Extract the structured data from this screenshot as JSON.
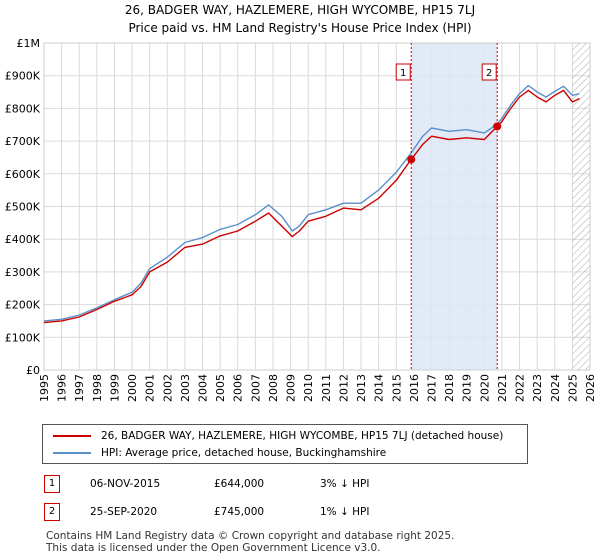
{
  "chart_data": {
    "type": "line",
    "title": "26, BADGER WAY, HAZLEMERE, HIGH WYCOMBE, HP15 7LJ",
    "subtitle": "Price paid vs. HM Land Registry's House Price Index (HPI)",
    "xlim": [
      1995,
      2026
    ],
    "ylim": [
      0,
      1000000
    ],
    "y_ticks": [
      0,
      100000,
      200000,
      300000,
      400000,
      500000,
      600000,
      700000,
      800000,
      900000,
      1000000
    ],
    "y_tick_labels": [
      "£0",
      "£100K",
      "£200K",
      "£300K",
      "£400K",
      "£500K",
      "£600K",
      "£700K",
      "£800K",
      "£900K",
      "£1M"
    ],
    "x_ticks": [
      1995,
      1996,
      1997,
      1998,
      1999,
      2000,
      2001,
      2002,
      2003,
      2004,
      2005,
      2006,
      2007,
      2008,
      2009,
      2010,
      2011,
      2012,
      2013,
      2014,
      2015,
      2016,
      2017,
      2018,
      2019,
      2020,
      2021,
      2022,
      2023,
      2024,
      2025,
      2026
    ],
    "grid": true,
    "shaded_period": [
      2015.85,
      2020.73
    ],
    "hatched_after": 2025.0,
    "series": [
      {
        "name": "26, BADGER WAY, HAZLEMERE, HIGH WYCOMBE, HP15 7LJ (detached house)",
        "color": "#cc0000",
        "x": [
          1995,
          1996,
          1997,
          1998,
          1999,
          2000,
          2000.5,
          2001,
          2002,
          2003,
          2004,
          2005,
          2006,
          2007,
          2007.75,
          2008.5,
          2009.1,
          2009.5,
          2010,
          2011,
          2012,
          2013,
          2014,
          2015,
          2015.85,
          2016.5,
          2017,
          2018,
          2019,
          2020,
          2020.73,
          2021,
          2021.5,
          2022,
          2022.5,
          2023,
          2023.5,
          2024,
          2024.5,
          2025,
          2025.4
        ],
        "y": [
          145000,
          150000,
          162000,
          185000,
          210000,
          230000,
          255000,
          300000,
          330000,
          375000,
          385000,
          410000,
          425000,
          455000,
          480000,
          440000,
          408000,
          425000,
          455000,
          470000,
          495000,
          490000,
          525000,
          580000,
          644000,
          690000,
          715000,
          705000,
          710000,
          705000,
          745000,
          760000,
          800000,
          835000,
          855000,
          835000,
          820000,
          840000,
          855000,
          820000,
          830000
        ]
      },
      {
        "name": "HPI: Average price, detached house, Buckinghamshire",
        "color": "#5b8fc9",
        "x": [
          1995,
          1996,
          1997,
          1998,
          1999,
          2000,
          2000.5,
          2001,
          2002,
          2003,
          2004,
          2005,
          2006,
          2007,
          2007.75,
          2008.5,
          2009.1,
          2009.5,
          2010,
          2011,
          2012,
          2013,
          2014,
          2015,
          2015.85,
          2016.5,
          2017,
          2018,
          2019,
          2020,
          2020.73,
          2021,
          2021.5,
          2022,
          2022.5,
          2023,
          2023.5,
          2024,
          2024.5,
          2025,
          2025.4
        ],
        "y": [
          150000,
          155000,
          168000,
          190000,
          215000,
          238000,
          265000,
          310000,
          345000,
          390000,
          405000,
          430000,
          445000,
          475000,
          505000,
          470000,
          425000,
          440000,
          475000,
          490000,
          510000,
          510000,
          550000,
          605000,
          664000,
          715000,
          740000,
          730000,
          735000,
          725000,
          752000,
          770000,
          810000,
          845000,
          870000,
          850000,
          835000,
          852000,
          868000,
          840000,
          845000
        ]
      }
    ],
    "annotations": [
      {
        "label": "1",
        "x": 2015.85,
        "y": 644000
      },
      {
        "label": "2",
        "x": 2020.73,
        "y": 745000
      }
    ]
  },
  "legend": {
    "line1": "26, BADGER WAY, HAZLEMERE, HIGH WYCOMBE, HP15 7LJ (detached house)",
    "line2": "HPI: Average price, detached house, Buckinghamshire"
  },
  "transactions": [
    {
      "num": "1",
      "date": "06-NOV-2015",
      "price": "£644,000",
      "diff": "3% ↓ HPI"
    },
    {
      "num": "2",
      "date": "25-SEP-2020",
      "price": "£745,000",
      "diff": "1% ↓ HPI"
    }
  ],
  "footer": {
    "line1": "Contains HM Land Registry data © Crown copyright and database right 2025.",
    "line2": "This data is licensed under the Open Government Licence v3.0."
  }
}
